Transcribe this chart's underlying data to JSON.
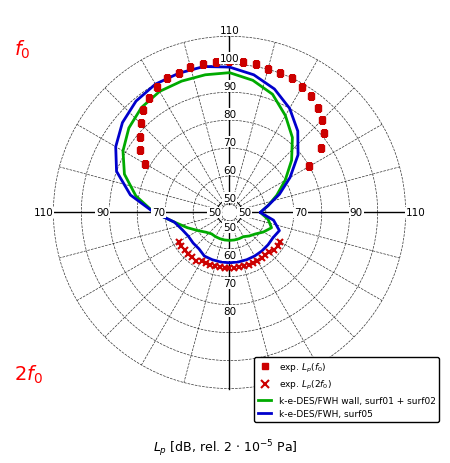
{
  "legend_entries": [
    "exp. $L_p(f_0)$",
    "exp. $L_p(2f_0)$",
    "k-e-DES/FWH wall, surf01 + surf02",
    "k-e-DES/FWH, surf05"
  ],
  "rmin": 50,
  "rmax": 110,
  "color_exp_f0": "#cc0000",
  "color_exp_2f0": "#cc0000",
  "color_green": "#00aa00",
  "color_blue": "#0000cc",
  "bg_color": "#ffffff",
  "exp_f0_angles_deg": [
    30,
    35,
    40,
    45,
    50,
    55,
    60,
    65,
    70,
    75,
    80,
    85,
    90,
    95,
    100,
    105,
    110,
    115,
    120,
    125,
    130,
    135,
    140,
    145,
    150
  ],
  "exp_f0_r": [
    80,
    87,
    91,
    94,
    96,
    98,
    99,
    100,
    100,
    100,
    101,
    101,
    101,
    101,
    101,
    101,
    100,
    100,
    99,
    97,
    95,
    92,
    89,
    86,
    82
  ],
  "exp_2f0_angles_deg": [
    210,
    215,
    220,
    225,
    230,
    235,
    240,
    245,
    250,
    255,
    260,
    265,
    270,
    275,
    280,
    285,
    290,
    295,
    300,
    305,
    310,
    315,
    320,
    325,
    330
  ],
  "exp_2f0_r": [
    68,
    68,
    68,
    68,
    68,
    68,
    67,
    67,
    67,
    67,
    67,
    67,
    67,
    67,
    67,
    67,
    67,
    67,
    67,
    67,
    67,
    67,
    68,
    68,
    68
  ],
  "green_angles_deg": [
    0,
    10,
    20,
    30,
    40,
    50,
    60,
    70,
    80,
    90,
    100,
    110,
    120,
    130,
    140,
    150,
    160,
    170,
    180,
    190,
    200,
    210,
    220,
    230,
    240,
    250,
    260,
    270,
    280,
    290,
    300,
    310,
    320,
    330,
    340,
    350,
    360
  ],
  "green_r": [
    58,
    61,
    65,
    70,
    76,
    82,
    87,
    92,
    95,
    97,
    97,
    97,
    97,
    96,
    94,
    91,
    87,
    81,
    74,
    67,
    63,
    60,
    58,
    57,
    57,
    57,
    57,
    57,
    57,
    57,
    57,
    58,
    59,
    61,
    63,
    61,
    58
  ],
  "blue_angles_deg": [
    0,
    10,
    20,
    30,
    40,
    50,
    60,
    70,
    80,
    90,
    100,
    110,
    120,
    130,
    140,
    150,
    160,
    170,
    180,
    190,
    200,
    210,
    220,
    230,
    240,
    250,
    260,
    270,
    280,
    290,
    300,
    310,
    320,
    330,
    340,
    350,
    360
  ],
  "blue_r": [
    58,
    61,
    66,
    72,
    79,
    85,
    90,
    94,
    97,
    99,
    100,
    100,
    100,
    99,
    97,
    94,
    90,
    83,
    74,
    67,
    65,
    64,
    64,
    64,
    65,
    65,
    65,
    65,
    65,
    65,
    65,
    65,
    65,
    65,
    66,
    63,
    58
  ]
}
